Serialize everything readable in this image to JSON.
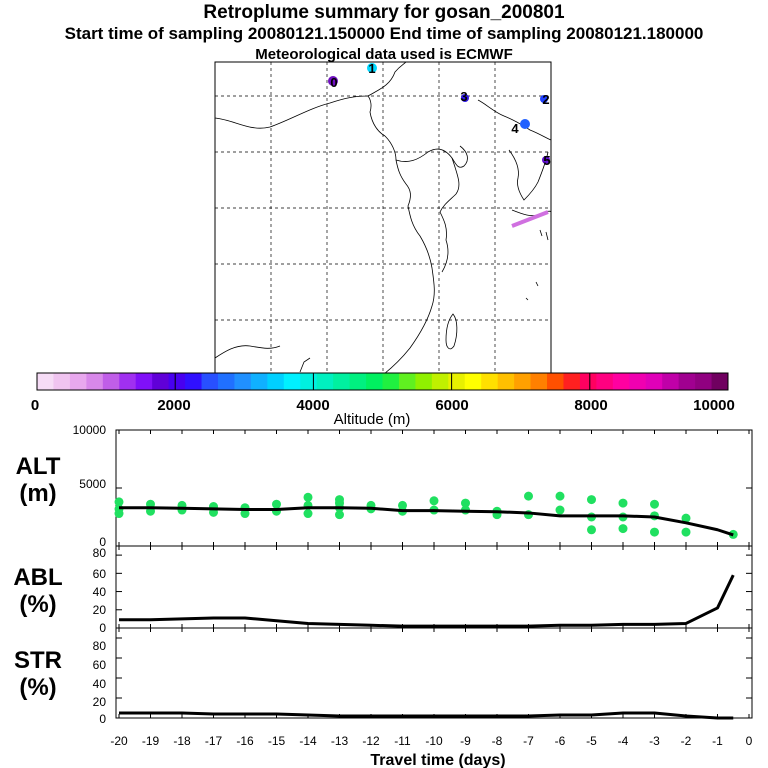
{
  "header": {
    "title": "Retroplume summary for gosan_200801",
    "sampling": "Start time of sampling 20080121.150000     End time of sampling 20080121.180000",
    "met": "Meteorological data used is ECMWF"
  },
  "map": {
    "plume_labels": [
      "0",
      "1",
      "2",
      "3",
      "4",
      "5"
    ]
  },
  "colorbar": {
    "label": "Altitude (m)",
    "ticks": [
      "0",
      "2000",
      "4000",
      "6000",
      "8000",
      "10000"
    ],
    "colors": [
      "#f6dcf6",
      "#f0c4f0",
      "#e8a8ee",
      "#d888ea",
      "#c05ee8",
      "#a030f0",
      "#8010f8",
      "#6000d8",
      "#4800f0",
      "#3010ff",
      "#2850ff",
      "#2070ff",
      "#2090ff",
      "#10b0ff",
      "#00d0ff",
      "#00f0ff",
      "#00f0e0",
      "#00f0c0",
      "#00f0a0",
      "#00f080",
      "#00f060",
      "#20f040",
      "#60f020",
      "#90f000",
      "#c0f000",
      "#e8f000",
      "#ffff00",
      "#ffe000",
      "#ffc000",
      "#ffa000",
      "#ff8000",
      "#ff5000",
      "#ff2020",
      "#ff0060",
      "#ff0080",
      "#ff00a0",
      "#f000b0",
      "#e000b8",
      "#c000a8",
      "#a00090",
      "#900080",
      "#700060"
    ]
  },
  "chart_data": [
    {
      "type": "line",
      "panel": "ALT",
      "ylabel": "ALT\n(m)",
      "ylabel_lines": [
        "ALT",
        "(m)"
      ],
      "ylim": [
        0,
        10000
      ],
      "yticks": [
        "10000",
        "5000",
        "0"
      ],
      "ytick_values": [
        10000,
        5000,
        0
      ],
      "xlim": [
        -20,
        -0.5
      ],
      "x": [
        -20,
        -19,
        -18,
        -17,
        -16,
        -15,
        -14,
        -13,
        -12,
        -11,
        -10,
        -9,
        -8,
        -7,
        -6,
        -5,
        -4,
        -3,
        -2,
        -1,
        -0.5
      ],
      "values": [
        3300,
        3300,
        3250,
        3200,
        3150,
        3150,
        3300,
        3300,
        3250,
        3050,
        3050,
        3000,
        2950,
        2850,
        2600,
        2600,
        2600,
        2500,
        2000,
        1400,
        950
      ],
      "points_x": [
        -20,
        -20,
        -20,
        -19,
        -19,
        -18,
        -18,
        -17,
        -17,
        -16,
        -16,
        -15,
        -15,
        -14,
        -14,
        -14,
        -13,
        -13,
        -13,
        -13,
        -12,
        -12,
        -11,
        -11,
        -10,
        -10,
        -9,
        -9,
        -8,
        -8,
        -7,
        -7,
        -6,
        -6,
        -5,
        -5,
        -5,
        -4,
        -4,
        -4,
        -3,
        -3,
        -3,
        -2,
        -2,
        -0.5
      ],
      "points_y": [
        3800,
        3200,
        2800,
        3600,
        3000,
        3500,
        3100,
        3400,
        2900,
        3300,
        2800,
        3600,
        3000,
        4200,
        3500,
        2800,
        4000,
        3300,
        3700,
        2700,
        3500,
        3200,
        3500,
        3000,
        3900,
        3100,
        3700,
        3100,
        3000,
        2700,
        4300,
        2700,
        4300,
        3100,
        4000,
        2500,
        1400,
        3700,
        2500,
        1500,
        3600,
        2600,
        1200,
        2400,
        1200,
        1000
      ]
    },
    {
      "type": "line",
      "panel": "ABL",
      "ylabel": "ABL\n(%)",
      "ylabel_lines": [
        "ABL",
        "(%)"
      ],
      "ylim": [
        0,
        90
      ],
      "yticks": [
        "80",
        "60",
        "40",
        "20",
        "0"
      ],
      "ytick_values": [
        80,
        60,
        40,
        20,
        0
      ],
      "xlim": [
        -20,
        -0.5
      ],
      "x": [
        -20,
        -19,
        -18,
        -17,
        -16,
        -15,
        -14,
        -13,
        -12,
        -11,
        -10,
        -9,
        -8,
        -7,
        -6,
        -5,
        -4,
        -3,
        -2,
        -1,
        -0.5
      ],
      "values": [
        9,
        9,
        10,
        11,
        11,
        8,
        5,
        4,
        3,
        2,
        2,
        2,
        2,
        2,
        3,
        3,
        4,
        4,
        5,
        22,
        58
      ]
    },
    {
      "type": "line",
      "panel": "STR",
      "ylabel": "STR\n(%)",
      "ylabel_lines": [
        "STR",
        "(%)"
      ],
      "ylim": [
        0,
        90
      ],
      "yticks": [
        "80",
        "60",
        "40",
        "20",
        "0"
      ],
      "ytick_values": [
        80,
        60,
        40,
        20,
        0
      ],
      "xlim": [
        -20,
        -0.5
      ],
      "x": [
        -20,
        -19,
        -18,
        -17,
        -16,
        -15,
        -14,
        -13,
        -12,
        -11,
        -10,
        -9,
        -8,
        -7,
        -6,
        -5,
        -4,
        -3,
        -2,
        -1,
        -0.5
      ],
      "values": [
        5,
        5,
        5,
        4,
        4,
        4,
        3,
        2,
        2,
        2,
        2,
        2,
        2,
        2,
        3,
        3,
        5,
        5,
        2,
        0,
        0
      ]
    }
  ],
  "xaxis": {
    "label": "Travel time (days)",
    "ticks": [
      "-20",
      "-19",
      "-18",
      "-17",
      "-16",
      "-15",
      "-14",
      "-13",
      "-12",
      "-11",
      "-10",
      "-9",
      "-8",
      "-7",
      "-6",
      "-5",
      "-4",
      "-3",
      "-2",
      "-1",
      "0"
    ],
    "tick_values": [
      -20,
      -19,
      -18,
      -17,
      -16,
      -15,
      -14,
      -13,
      -12,
      -11,
      -10,
      -9,
      -8,
      -7,
      -6,
      -5,
      -4,
      -3,
      -2,
      -1,
      0
    ]
  },
  "colors": {
    "series_line": "#000000",
    "points": "#20e060",
    "plume": "#d070e0"
  }
}
